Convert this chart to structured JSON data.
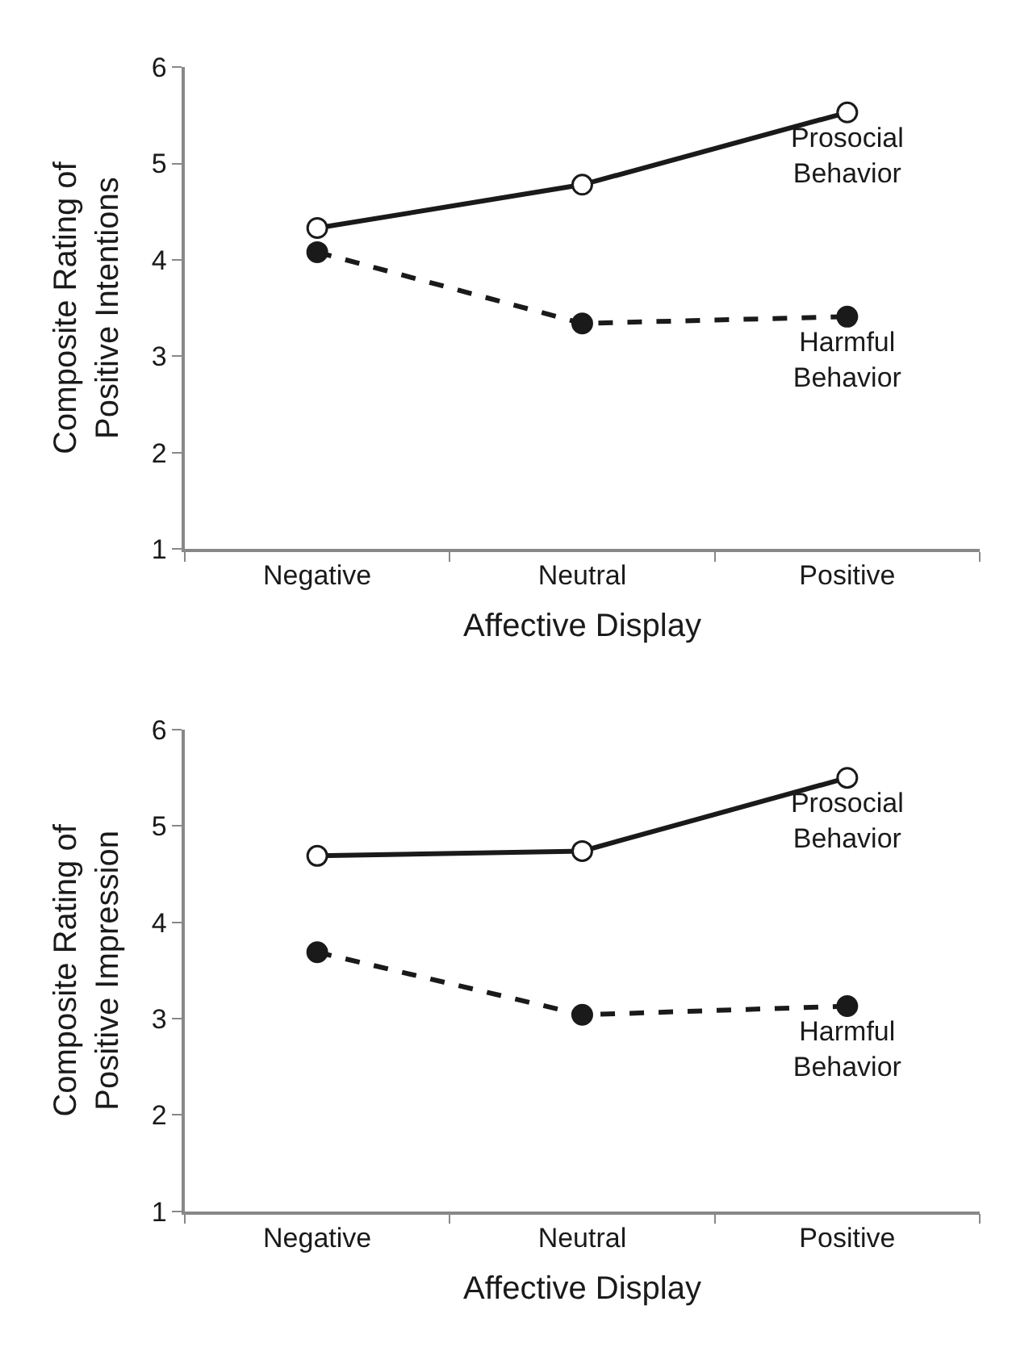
{
  "chart_data": [
    {
      "type": "line",
      "xlabel": "Affective Display",
      "ylabel": "Composite Rating of Positive Intentions",
      "categories": [
        "Negative",
        "Neutral",
        "Positive"
      ],
      "ylim": [
        1,
        6
      ],
      "yticks": [
        1,
        2,
        3,
        4,
        5,
        6
      ],
      "series": [
        {
          "name": "Prosocial Behavior",
          "color": "#1a1a1a",
          "values": [
            4.33,
            4.78,
            5.53
          ],
          "line_style": "solid",
          "marker": "circle-open"
        },
        {
          "name": "Harmful Behavior",
          "color": "#1a1a1a",
          "values": [
            4.08,
            3.34,
            3.41
          ],
          "line_style": "dashed",
          "marker": "circle"
        }
      ]
    },
    {
      "type": "line",
      "xlabel": "Affective Display",
      "ylabel": "Composite Rating of Positive Impression",
      "categories": [
        "Negative",
        "Neutral",
        "Positive"
      ],
      "ylim": [
        1,
        6
      ],
      "yticks": [
        1,
        2,
        3,
        4,
        5,
        6
      ],
      "series": [
        {
          "name": "Prosocial Behavior",
          "color": "#1a1a1a",
          "values": [
            4.69,
            4.74,
            5.5
          ],
          "line_style": "solid",
          "marker": "circle-open"
        },
        {
          "name": "Harmful Behavior",
          "color": "#1a1a1a",
          "values": [
            3.69,
            3.04,
            3.13
          ],
          "line_style": "dashed",
          "marker": "circle"
        }
      ]
    }
  ]
}
